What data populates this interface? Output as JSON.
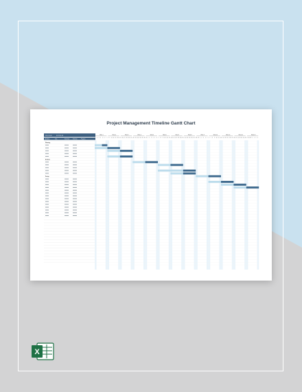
{
  "sheet": {
    "title": "Project Management Timeline Gantt Chart",
    "start_date_label": "Start Date",
    "start_date_value": "01-Feb-20",
    "column_headers": [
      "Activities",
      "Task",
      "Start Date",
      "End Date",
      "Progress"
    ],
    "phase_labels": [
      "Planning",
      "Analysis",
      "Design"
    ],
    "weeks": [
      "Week 1",
      "Week 2",
      "Week 3",
      "Week 4",
      "Week 5",
      "Week 6",
      "Week 7",
      "Week 8",
      "Week 9",
      "Week 10",
      "Week 11",
      "Week 12",
      "Week 13"
    ]
  },
  "icon": "excel-icon",
  "colors": {
    "bar_dark": "#3e6a8e",
    "bar_light": "#bcdcec",
    "header_fill": "#3d5f80",
    "background_blue": "#c9e1ef",
    "background_gray": "#d3d3d4"
  }
}
